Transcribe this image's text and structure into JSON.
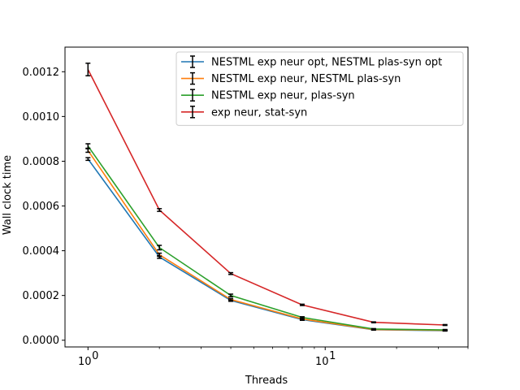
{
  "chart_data": {
    "type": "line",
    "xscale": "log",
    "x": [
      1,
      2,
      4,
      8,
      16,
      32
    ],
    "xlim": [
      0.8,
      40
    ],
    "ylim": [
      -3e-05,
      0.00131
    ],
    "xlabel": "Threads",
    "ylabel": "Wall clock time",
    "xticks": [
      {
        "value": 1,
        "label": "10",
        "exp": "0"
      },
      {
        "value": 10,
        "label": "10",
        "exp": "1"
      }
    ],
    "yticks": [
      {
        "value": 0.0,
        "label": "0.0000"
      },
      {
        "value": 0.0002,
        "label": "0.0002"
      },
      {
        "value": 0.0004,
        "label": "0.0004"
      },
      {
        "value": 0.0006,
        "label": "0.0006"
      },
      {
        "value": 0.0008,
        "label": "0.0008"
      },
      {
        "value": 0.001,
        "label": "0.0010"
      },
      {
        "value": 0.0012,
        "label": "0.0012"
      }
    ],
    "legend_position": "top-right",
    "series": [
      {
        "name": "NESTML exp neur opt, NESTML plas-syn opt",
        "color": "#1f77b4",
        "values": [
          0.00081,
          0.000372,
          0.000178,
          9.2e-05,
          4.7e-05,
          4.3e-05
        ],
        "errors": [
          6e-06,
          6e-06,
          4e-06,
          3e-06,
          2e-06,
          2e-06
        ]
      },
      {
        "name": "NESTML exp neur, NESTML plas-syn",
        "color": "#ff7f0e",
        "values": [
          0.000848,
          0.000382,
          0.000182,
          9.5e-05,
          4.8e-05,
          4.4e-05
        ],
        "errors": [
          8e-06,
          7e-06,
          4e-06,
          3e-06,
          2e-06,
          2e-06
        ]
      },
      {
        "name": "NESTML exp neur, plas-syn",
        "color": "#2ca02c",
        "values": [
          0.000868,
          0.000414,
          0.0002,
          0.000102,
          5e-05,
          4.6e-05
        ],
        "errors": [
          1e-05,
          1e-05,
          6e-06,
          3e-06,
          2e-06,
          2e-06
        ]
      },
      {
        "name": "exp neur, stat-syn",
        "color": "#d62728",
        "values": [
          0.00121,
          0.000582,
          0.000298,
          0.000158,
          8e-05,
          6.8e-05
        ],
        "errors": [
          2.8e-05,
          6e-06,
          4e-06,
          3e-06,
          2e-06,
          2e-06
        ]
      }
    ]
  }
}
